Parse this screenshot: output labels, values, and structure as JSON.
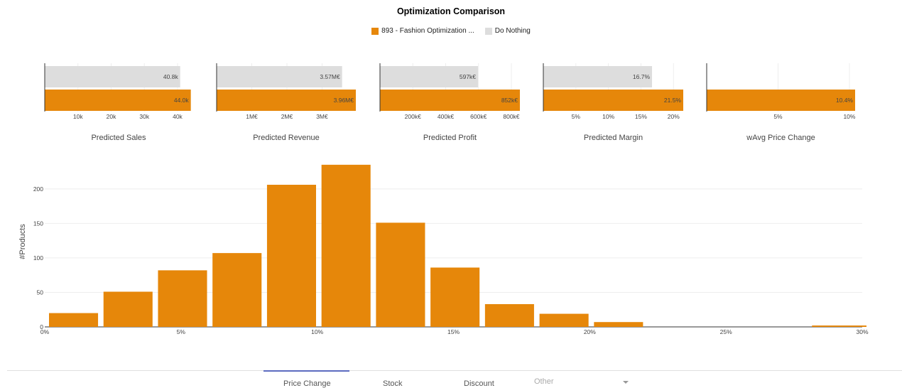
{
  "title": "Optimization Comparison",
  "legend": [
    {
      "label": "893 - Fashion Optimization ...",
      "color": "#e6870a"
    },
    {
      "label": "Do Nothing",
      "color": "#dddddd"
    }
  ],
  "chart_data": [
    {
      "type": "bar",
      "title": "Predicted Sales",
      "orientation": "horizontal",
      "series": [
        {
          "name": "Do Nothing",
          "value": 40.8,
          "label": "40.8k"
        },
        {
          "name": "893 - Fashion Optimization ...",
          "value": 44.0,
          "label": "44.0k"
        }
      ],
      "xlim": [
        0,
        44.5
      ],
      "ticks": [
        {
          "v": 10,
          "t": "10k"
        },
        {
          "v": 20,
          "t": "20k"
        },
        {
          "v": 30,
          "t": "30k"
        },
        {
          "v": 40,
          "t": "40k"
        }
      ]
    },
    {
      "type": "bar",
      "title": "Predicted Revenue",
      "orientation": "horizontal",
      "series": [
        {
          "name": "Do Nothing",
          "value": 3.57,
          "label": "3.57M€"
        },
        {
          "name": "893 - Fashion Optimization ...",
          "value": 3.96,
          "label": "3.96M€"
        }
      ],
      "xlim": [
        0,
        3.96
      ],
      "ticks": [
        {
          "v": 1,
          "t": "1M€"
        },
        {
          "v": 2,
          "t": "2M€"
        },
        {
          "v": 3,
          "t": "3M€"
        }
      ]
    },
    {
      "type": "bar",
      "title": "Predicted Profit",
      "orientation": "horizontal",
      "series": [
        {
          "name": "Do Nothing",
          "value": 597,
          "label": "597k€"
        },
        {
          "name": "893 - Fashion Optimization ...",
          "value": 852,
          "label": "852k€"
        }
      ],
      "xlim": [
        0,
        852
      ],
      "ticks": [
        {
          "v": 200,
          "t": "200k€"
        },
        {
          "v": 400,
          "t": "400k€"
        },
        {
          "v": 600,
          "t": "600k€"
        },
        {
          "v": 800,
          "t": "800k€"
        }
      ]
    },
    {
      "type": "bar",
      "title": "Predicted Margin",
      "orientation": "horizontal",
      "series": [
        {
          "name": "Do Nothing",
          "value": 16.7,
          "label": "16.7%"
        },
        {
          "name": "893 - Fashion Optimization ...",
          "value": 21.5,
          "label": "21.5%"
        }
      ],
      "xlim": [
        0,
        21.5
      ],
      "ticks": [
        {
          "v": 5,
          "t": "5%"
        },
        {
          "v": 10,
          "t": "10%"
        },
        {
          "v": 15,
          "t": "15%"
        },
        {
          "v": 20,
          "t": "20%"
        }
      ]
    },
    {
      "type": "bar",
      "title": "wAvg Price Change",
      "orientation": "horizontal",
      "series": [
        {
          "name": "893 - Fashion Optimization ...",
          "value": 10.4,
          "label": "10.4%"
        }
      ],
      "xlim": [
        0,
        10.4
      ],
      "ticks": [
        {
          "v": 5,
          "t": "5%"
        },
        {
          "v": 10,
          "t": "10%"
        }
      ]
    },
    {
      "type": "bar",
      "title": "",
      "ylabel": "#Products",
      "xlabel": "",
      "x_ranges": [
        [
          0,
          1.8
        ],
        [
          2,
          3.8
        ],
        [
          4,
          5.8
        ],
        [
          6,
          7.8
        ],
        [
          8,
          9.8
        ],
        [
          10,
          11.8
        ],
        [
          12,
          13.8
        ],
        [
          14,
          15.8
        ],
        [
          16,
          17.8
        ],
        [
          18,
          19.8
        ],
        [
          20,
          21.8
        ],
        [
          28,
          30
        ]
      ],
      "values": [
        20,
        51,
        82,
        107,
        206,
        235,
        151,
        86,
        33,
        19,
        7,
        2
      ],
      "xlim": [
        0,
        30
      ],
      "ylim": [
        0,
        240
      ],
      "xticks": [
        {
          "v": 0,
          "t": "0%"
        },
        {
          "v": 5,
          "t": "5%"
        },
        {
          "v": 10,
          "t": "10%"
        },
        {
          "v": 15,
          "t": "15%"
        },
        {
          "v": 20,
          "t": "20%"
        },
        {
          "v": 25,
          "t": "25%"
        },
        {
          "v": 30,
          "t": "30%"
        }
      ],
      "yticks": [
        0,
        50,
        100,
        150,
        200
      ]
    }
  ],
  "tabs": {
    "price_change": "Price Change",
    "stock": "Stock",
    "discount": "Discount",
    "other": "Other"
  }
}
